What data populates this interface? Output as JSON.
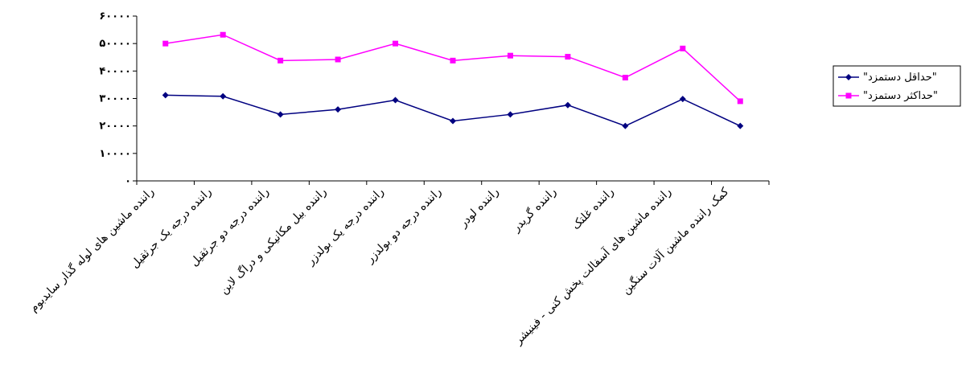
{
  "chart_data": {
    "type": "line",
    "categories": [
      "راننده ماشین های لوله گذار سایدبوم",
      "راننده درجه یک جرثقیل",
      "راننده درجه دو جرثقیل",
      "راننده بیل مکانیکی و دراگ لاین",
      "راننده درجه یک بولدزر",
      "راننده درجه دو بولدزر",
      "راننده لودر",
      "راننده گریدر",
      "راننده غلتک",
      "راننده ماشین های آسفالت پخش کنی - فینیشر",
      "کمک راننده ماشین آلات سنگین"
    ],
    "series": [
      {
        "name": "\"حداقل دستمزد\"",
        "color": "#000080",
        "marker": "diamond",
        "values": [
          31200,
          30800,
          24200,
          26000,
          29400,
          21800,
          24200,
          27600,
          20000,
          29800,
          20000
        ]
      },
      {
        "name": "\"حداکثر دستمزد\"",
        "color": "#FF00FF",
        "marker": "square",
        "values": [
          50000,
          53200,
          43800,
          44200,
          50000,
          43800,
          45600,
          45200,
          37600,
          48200,
          29000
        ]
      }
    ],
    "yticks": [
      "۰",
      "۱۰۰۰۰",
      "۲۰۰۰۰",
      "۳۰۰۰۰",
      "۴۰۰۰۰",
      "۵۰۰۰۰",
      "۶۰۰۰۰"
    ],
    "ylim": [
      0,
      60000
    ],
    "grid": false,
    "legend": "right"
  }
}
